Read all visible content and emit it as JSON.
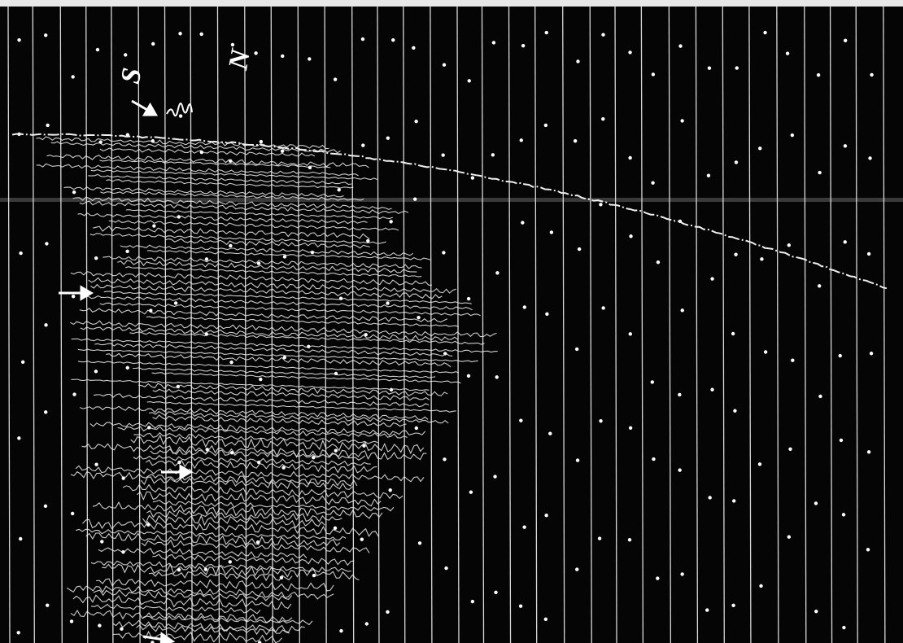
{
  "labels": {
    "south": "S",
    "north": "N"
  }
}
